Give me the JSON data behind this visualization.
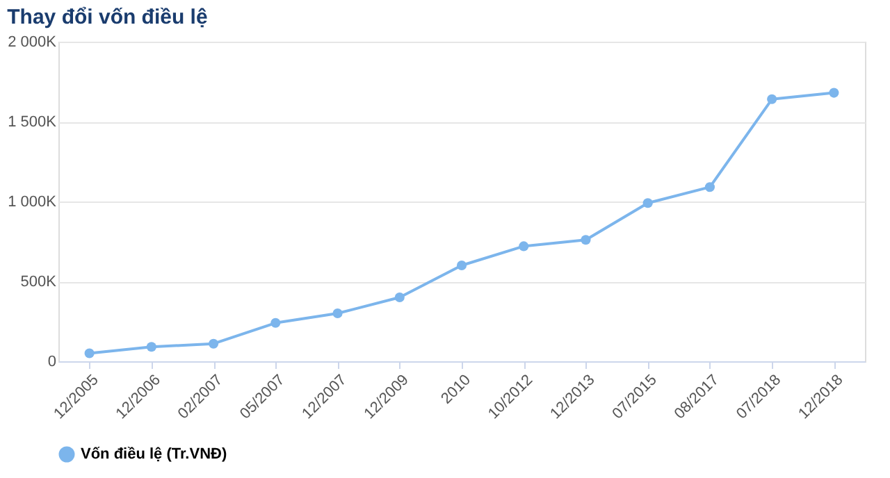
{
  "chart_data": {
    "type": "line",
    "title": "Thay đổi vốn điều lệ",
    "categories": [
      "12/2005",
      "12/2006",
      "02/2007",
      "05/2007",
      "12/2007",
      "12/2009",
      "2010",
      "10/2012",
      "12/2013",
      "07/2015",
      "08/2017",
      "07/2018",
      "12/2018"
    ],
    "series": [
      {
        "name": "Vốn điều lệ (Tr.VNĐ)",
        "color": "#7cb5ec",
        "values": [
          50000,
          90000,
          110000,
          240000,
          300000,
          400000,
          600000,
          720000,
          760000,
          990000,
          1090000,
          1640000,
          1680000
        ]
      }
    ],
    "ylim": [
      0,
      2000000
    ],
    "yticks": [
      {
        "value": 0,
        "label": "0"
      },
      {
        "value": 500000,
        "label": "500K"
      },
      {
        "value": 1000000,
        "label": "1 000K"
      },
      {
        "value": 1500000,
        "label": "1 500K"
      },
      {
        "value": 2000000,
        "label": "2 000K"
      }
    ],
    "grid": "y",
    "legend": "bottom",
    "marker": "circle",
    "line_style": "solid"
  }
}
